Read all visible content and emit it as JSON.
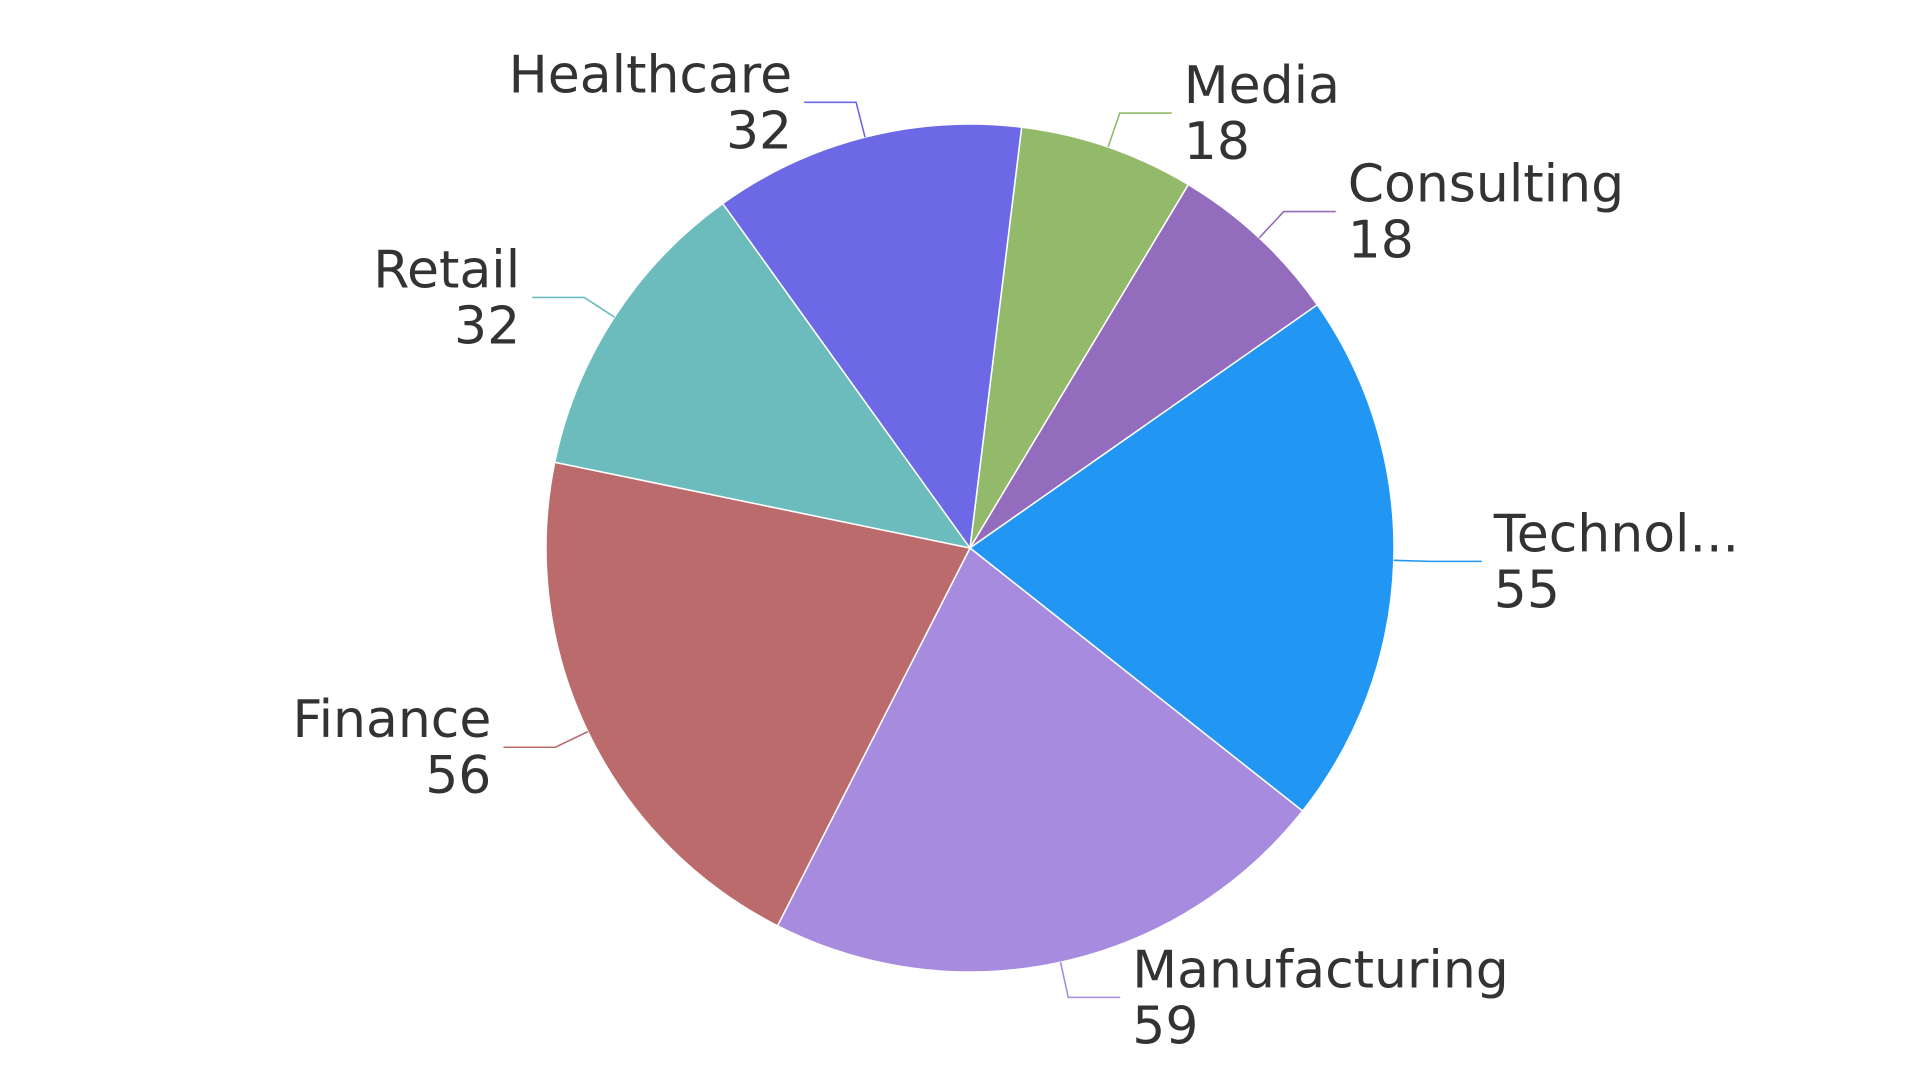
{
  "chart_data": {
    "type": "pie",
    "title": "",
    "categories": [
      "Media",
      "Consulting",
      "Technol...",
      "Manufacturing",
      "Finance",
      "Retail",
      "Healthcare"
    ],
    "values": [
      18,
      18,
      55,
      59,
      56,
      32,
      32
    ],
    "colors": [
      "#93ba6a",
      "#936cbd",
      "#2196f3",
      "#a78bde",
      "#bb6b6b",
      "#6cbcbd",
      "#6c68e6"
    ],
    "start_angle_deg": 7,
    "legend": "none",
    "data_labels": "outside-with-leader-lines"
  }
}
